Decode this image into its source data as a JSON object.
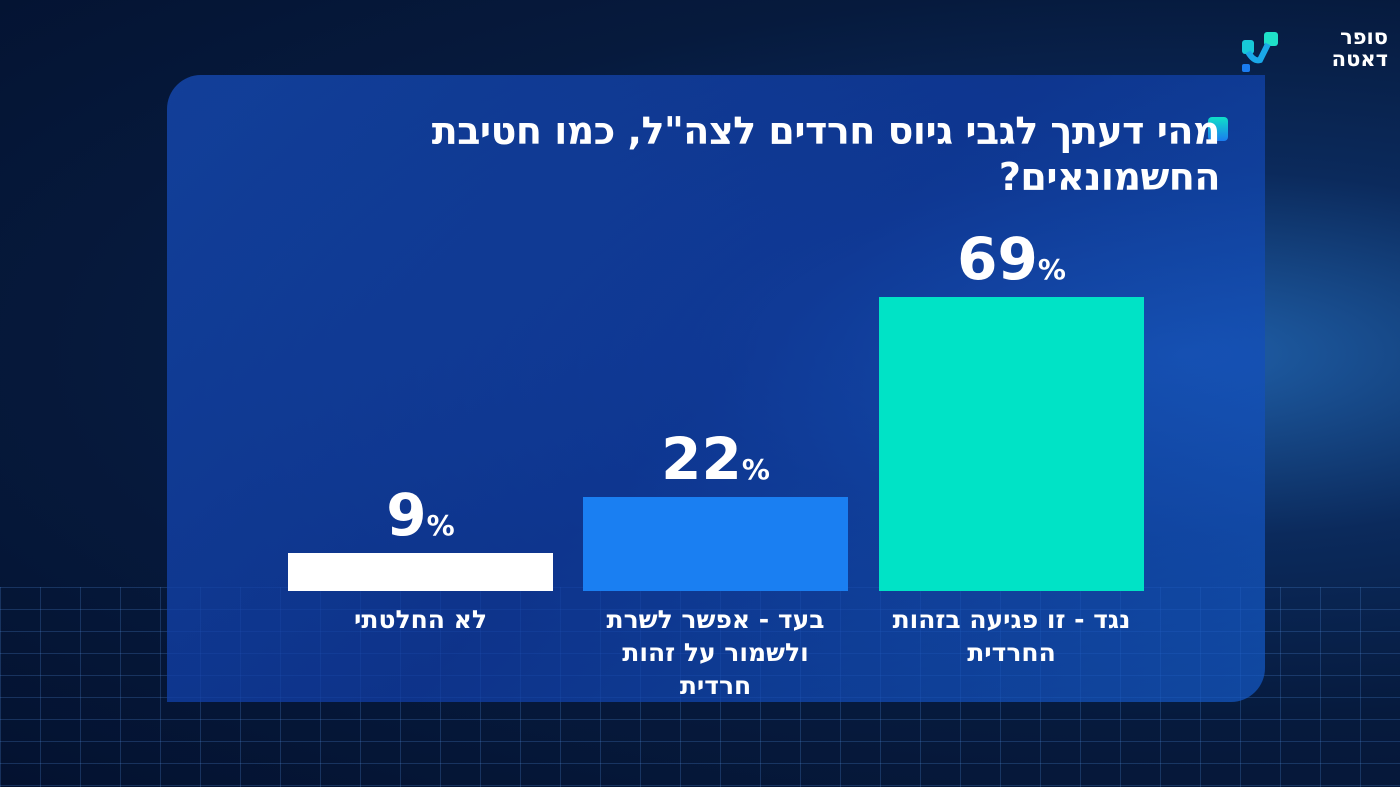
{
  "logo": {
    "line1": "סופר",
    "line2": "דאטה"
  },
  "chart_data": {
    "type": "bar",
    "title": "מהי דעתך לגבי גיוס חרדים לצה\"ל, כמו חטיבת החשמונאים?",
    "categories": [
      "נגד - זו פגיעה בזהות החרדית",
      "בעד - אפשר לשרת ולשמור על זהות חרדית",
      "לא החלטתי"
    ],
    "values": [
      69,
      22,
      9
    ],
    "value_labels": [
      "69",
      "22",
      "9"
    ],
    "unit": "%",
    "colors": [
      "#00e3c6",
      "#1a7ff2",
      "#ffffff"
    ],
    "ylim": [
      0,
      69
    ],
    "grid": false
  }
}
